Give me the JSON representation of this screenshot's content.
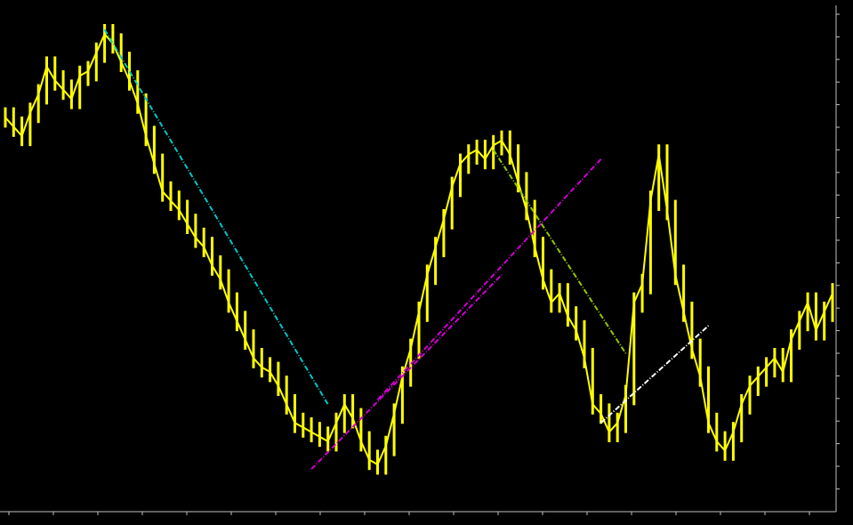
{
  "header_label": "",
  "footer_label": "",
  "colors": {
    "background": "#000000",
    "price": "#ffff00",
    "axis": "#c0c0c0",
    "trend_cyan": "#00c8c8",
    "trend_magenta": "#d000d0",
    "trend_green": "#90c800",
    "trend_white": "#ffffff"
  },
  "chart_data": {
    "type": "line",
    "title": "",
    "xlabel": "",
    "ylabel": "",
    "grid": false,
    "legend": "none",
    "x_index_range": [
      0,
      100
    ],
    "ylim": [
      0,
      100
    ],
    "series": [
      {
        "name": "",
        "values": [
          80,
          78,
          76,
          81,
          85,
          91,
          88,
          86,
          84,
          89,
          90,
          94,
          98,
          96,
          92,
          88,
          83,
          76,
          70,
          64,
          62,
          60,
          57,
          54,
          52,
          48,
          45,
          40,
          36,
          32,
          28,
          26,
          25,
          22,
          18,
          14,
          13,
          12,
          11,
          10,
          14,
          18,
          15,
          10,
          6,
          5,
          9,
          16,
          24,
          30,
          38,
          46,
          52,
          58,
          65,
          70,
          72,
          73,
          71,
          74,
          75,
          72,
          66,
          60,
          52,
          45,
          40,
          42,
          37,
          34,
          28,
          18,
          16,
          12,
          14,
          20,
          40,
          44,
          62,
          72,
          60,
          46,
          38,
          30,
          24,
          14,
          10,
          8,
          12,
          18,
          22,
          24,
          26,
          28,
          25,
          32,
          36,
          40,
          34,
          38,
          42
        ]
      }
    ],
    "trendlines": [
      {
        "name": "",
        "color": "trend_cyan",
        "from": [
          12,
          99
        ],
        "to": [
          39,
          18
        ]
      },
      {
        "name": "",
        "color": "trend_magenta",
        "from": [
          37,
          4
        ],
        "to": [
          60,
          46
        ]
      },
      {
        "name": "",
        "color": "trend_magenta",
        "from": [
          45,
          19
        ],
        "to": [
          72,
          71
        ]
      },
      {
        "name": "",
        "color": "trend_green",
        "from": [
          59,
          73
        ],
        "to": [
          75,
          29
        ]
      },
      {
        "name": "",
        "color": "trend_white",
        "from": [
          72,
          14
        ],
        "to": [
          85,
          35
        ]
      }
    ]
  }
}
